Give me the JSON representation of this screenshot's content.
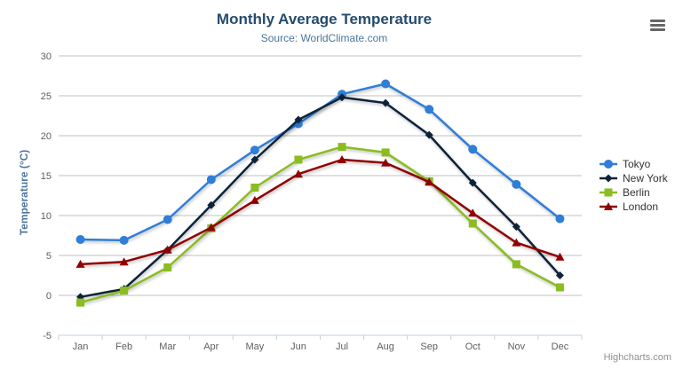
{
  "header": {
    "title": "Monthly Average Temperature",
    "subtitle": "Source: WorldClimate.com"
  },
  "credits": {
    "label": "Highcharts.com"
  },
  "icons": {
    "context_menu": "hamburger"
  },
  "colors": {
    "title": "#274b6d",
    "subtitle": "#4d759e",
    "axis_title": "#4d759e",
    "tick_label": "#606060",
    "grid_line": "#C0C0C0",
    "axis_line": "#C0D0E0",
    "legend_text": "#333333",
    "credits_text": "#909090",
    "menu_icon": "#666666"
  },
  "chart_data": {
    "type": "line",
    "title": "Monthly Average Temperature",
    "subtitle": "Source: WorldClimate.com",
    "categories": [
      "Jan",
      "Feb",
      "Mar",
      "Apr",
      "May",
      "Jun",
      "Jul",
      "Aug",
      "Sep",
      "Oct",
      "Nov",
      "Dec"
    ],
    "xlabel": "",
    "ylabel": "Temperature (°C)",
    "ylim": [
      -5,
      30
    ],
    "ytick_step": 5,
    "grid": true,
    "legend_position": "right",
    "series": [
      {
        "name": "Tokyo",
        "color": "#2f7ed8",
        "marker": "circle",
        "values": [
          7.0,
          6.9,
          9.5,
          14.5,
          18.2,
          21.5,
          25.2,
          26.5,
          23.3,
          18.3,
          13.9,
          9.6
        ]
      },
      {
        "name": "New York",
        "color": "#0d233a",
        "marker": "diamond",
        "values": [
          -0.2,
          0.8,
          5.7,
          11.3,
          17.0,
          22.0,
          24.8,
          24.1,
          20.1,
          14.1,
          8.6,
          2.5
        ]
      },
      {
        "name": "Berlin",
        "color": "#8bbc21",
        "marker": "square",
        "values": [
          -0.9,
          0.6,
          3.5,
          8.4,
          13.5,
          17.0,
          18.6,
          17.9,
          14.3,
          9.0,
          3.9,
          1.0
        ]
      },
      {
        "name": "London",
        "color": "#910000",
        "marker": "triangle",
        "values": [
          3.9,
          4.2,
          5.7,
          8.5,
          11.9,
          15.2,
          17.0,
          16.6,
          14.2,
          10.3,
          6.6,
          4.8
        ]
      }
    ]
  }
}
